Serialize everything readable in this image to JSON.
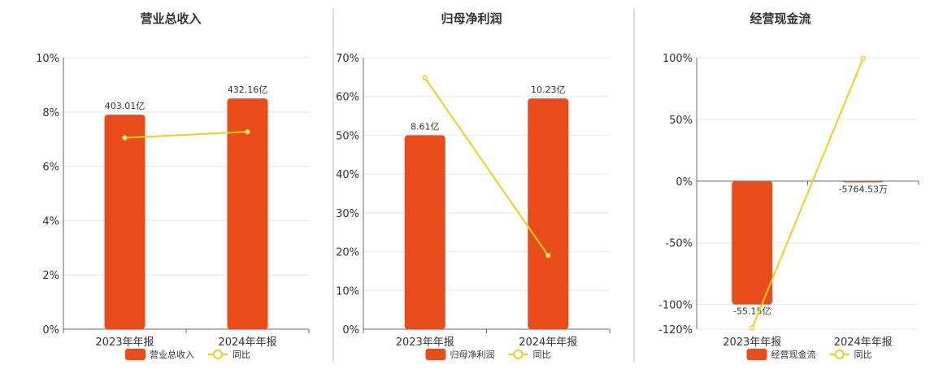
{
  "chart_data": [
    {
      "type": "bar",
      "title": "营业总收入",
      "categories": [
        "2023年年报",
        "2024年年报"
      ],
      "ylim": [
        0,
        10
      ],
      "ytick_labels": [
        "0%",
        "2%",
        "4%",
        "6%",
        "8%",
        "10%"
      ],
      "yticks": [
        0,
        2,
        4,
        6,
        8,
        10
      ],
      "series": [
        {
          "name": "营业总收入",
          "kind": "bar",
          "color": "#e84c1a",
          "values": [
            7.9,
            8.5
          ],
          "labels": [
            "403.01亿",
            "432.16亿"
          ]
        },
        {
          "name": "同比",
          "kind": "line",
          "color": "#f5cc1a",
          "values": [
            7.05,
            7.27
          ]
        }
      ],
      "grid": true,
      "legend": "bottom"
    },
    {
      "type": "bar",
      "title": "归母净利润",
      "categories": [
        "2023年年报",
        "2024年年报"
      ],
      "ylim": [
        0,
        70
      ],
      "ytick_labels": [
        "0%",
        "10%",
        "20%",
        "30%",
        "40%",
        "50%",
        "60%",
        "70%"
      ],
      "yticks": [
        0,
        10,
        20,
        30,
        40,
        50,
        60,
        70
      ],
      "series": [
        {
          "name": "归母净利润",
          "kind": "bar",
          "color": "#e84c1a",
          "values": [
            50.0,
            59.5
          ],
          "labels": [
            "8.61亿",
            "10.23亿"
          ]
        },
        {
          "name": "同比",
          "kind": "line",
          "color": "#f5cc1a",
          "values": [
            64.8,
            19.0
          ]
        }
      ],
      "grid": true,
      "legend": "bottom"
    },
    {
      "type": "bar",
      "title": "经营现金流",
      "categories": [
        "2023年年报",
        "2024年年报"
      ],
      "ylim": [
        -120,
        100
      ],
      "ytick_labels": [
        "-120%",
        "-100%",
        "-50%",
        "0%",
        "50%",
        "100%"
      ],
      "yticks": [
        -120,
        -100,
        -50,
        0,
        50,
        100
      ],
      "series": [
        {
          "name": "经营现金流",
          "kind": "bar",
          "color": "#e84c1a",
          "values": [
            -100.0,
            -1.0
          ],
          "labels": [
            "-55.15亿",
            "-5764.53万"
          ]
        },
        {
          "name": "同比",
          "kind": "line",
          "color": "#f5cc1a",
          "values": [
            -119.0,
            99.5
          ]
        }
      ],
      "grid": true,
      "legend": "bottom"
    }
  ]
}
